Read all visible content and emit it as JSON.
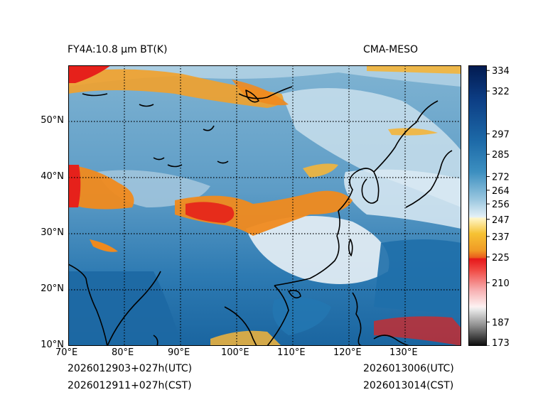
{
  "title_left": "FY4A:10.8 µm BT(K)",
  "title_right": "CMA-MESO",
  "init_utc": "2026012903+027h(UTC)",
  "init_cst": "2026012911+027h(CST)",
  "valid_utc": "2026013006(UTC)",
  "valid_cst": "2026013014(CST)",
  "map": {
    "lon_range": [
      70,
      140
    ],
    "lat_range": [
      10,
      60
    ],
    "lon_ticks": [
      "70°E",
      "80°E",
      "90°E",
      "100°E",
      "110°E",
      "120°E",
      "130°E"
    ],
    "lat_ticks": [
      "10°N",
      "20°N",
      "30°N",
      "40°N",
      "50°N"
    ],
    "gridline_style": "dotted"
  },
  "colorbar": {
    "range": [
      173,
      337
    ],
    "tick_values": [
      334,
      322,
      297,
      285,
      272,
      264,
      256,
      247,
      237,
      225,
      210,
      187,
      173
    ],
    "tick_labels": [
      "334",
      "322",
      "297",
      "285",
      "272",
      "264",
      "256",
      "247",
      "237",
      "225",
      "210",
      "187",
      "173"
    ]
  },
  "colors": {
    "cold_cloud_orange": "#f08a1e",
    "very_cold_red": "#e6211b",
    "warm_ocean_blue": "#1f6faa",
    "clear_land_blue": "#6aa3c8",
    "mid_cloud_white": "#e8f2f7",
    "coastline": "#000000"
  }
}
